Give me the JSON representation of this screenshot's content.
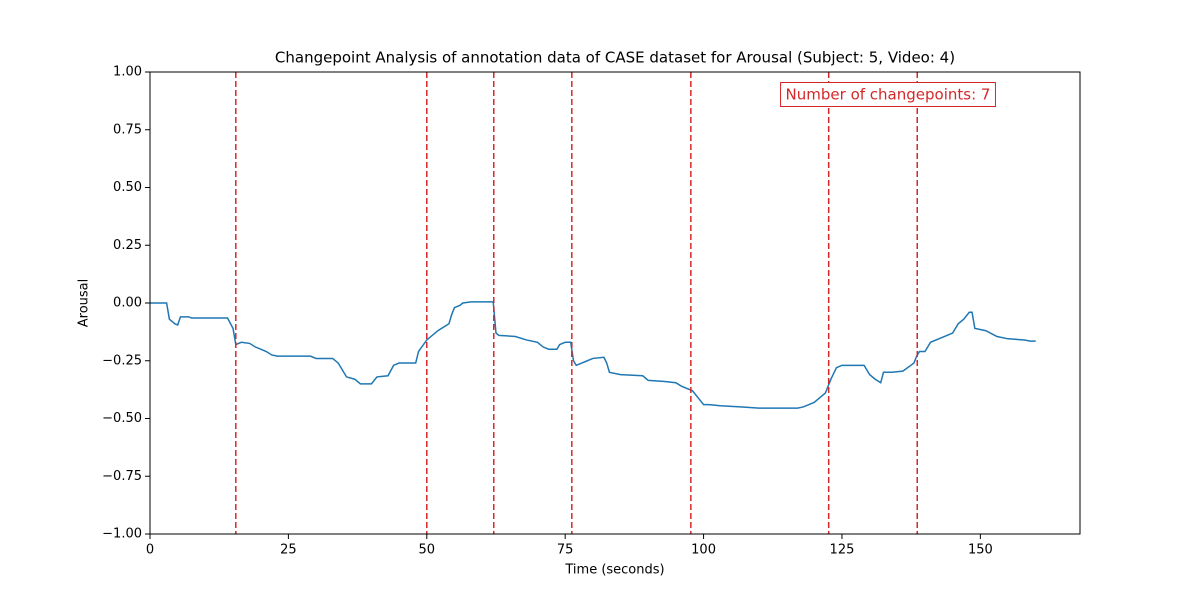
{
  "chart_data": {
    "type": "line",
    "title": "Changepoint Analysis of annotation data of CASE dataset for Arousal (Subject: 5, Video: 4)",
    "x_label": "Time (seconds)",
    "y_label": "Arousal",
    "annotation": "Number of changepoints: 7",
    "x": [
      0,
      3,
      3.5,
      4.5,
      5,
      5.5,
      7,
      7.5,
      14,
      15,
      15.5,
      16.5,
      18,
      19,
      20,
      21,
      22,
      23,
      29,
      30,
      33,
      34,
      35,
      35.5,
      37,
      38,
      40,
      41,
      43,
      44,
      45,
      48,
      48.5,
      50,
      52,
      54,
      54.5,
      55,
      56,
      56.5,
      58,
      62,
      62.5,
      63,
      66,
      68,
      70,
      71,
      72,
      73.5,
      74,
      75,
      76,
      76.5,
      77,
      78,
      79,
      80,
      82,
      82.5,
      83,
      85,
      89,
      90,
      93,
      95,
      96,
      98,
      99,
      100,
      101,
      103,
      107,
      110,
      117,
      118,
      119,
      120,
      121,
      122,
      123,
      124,
      125,
      129,
      130,
      131,
      132,
      132.5,
      134,
      136,
      138,
      138.5,
      139,
      140,
      141,
      143,
      145,
      146,
      147,
      148,
      148.5,
      149,
      151,
      153,
      155,
      158,
      159,
      160
    ],
    "series": [
      {
        "name": "Arousal",
        "color": "#1f77b4",
        "values": [
          0,
          0,
          -0.07,
          -0.09,
          -0.095,
          -0.06,
          -0.06,
          -0.065,
          -0.065,
          -0.11,
          -0.18,
          -0.17,
          -0.175,
          -0.19,
          -0.2,
          -0.21,
          -0.225,
          -0.23,
          -0.23,
          -0.24,
          -0.24,
          -0.26,
          -0.3,
          -0.32,
          -0.33,
          -0.35,
          -0.35,
          -0.32,
          -0.315,
          -0.27,
          -0.26,
          -0.26,
          -0.21,
          -0.16,
          -0.12,
          -0.09,
          -0.05,
          -0.02,
          -0.01,
          0,
          0.005,
          0.005,
          -0.13,
          -0.14,
          -0.145,
          -0.16,
          -0.17,
          -0.19,
          -0.2,
          -0.2,
          -0.18,
          -0.17,
          -0.17,
          -0.25,
          -0.27,
          -0.26,
          -0.25,
          -0.24,
          -0.235,
          -0.26,
          -0.3,
          -0.31,
          -0.315,
          -0.335,
          -0.34,
          -0.345,
          -0.36,
          -0.38,
          -0.41,
          -0.44,
          -0.44,
          -0.445,
          -0.45,
          -0.455,
          -0.455,
          -0.45,
          -0.44,
          -0.43,
          -0.41,
          -0.39,
          -0.33,
          -0.28,
          -0.27,
          -0.27,
          -0.31,
          -0.33,
          -0.345,
          -0.3,
          -0.3,
          -0.295,
          -0.26,
          -0.23,
          -0.21,
          -0.21,
          -0.17,
          -0.15,
          -0.13,
          -0.09,
          -0.07,
          -0.04,
          -0.04,
          -0.11,
          -0.12,
          -0.145,
          -0.155,
          -0.16,
          -0.165,
          -0.165
        ]
      }
    ],
    "changepoints": [
      15.5,
      50,
      62.1,
      76.2,
      97.7,
      122.6,
      138.6
    ],
    "changepoint_color": "#d62728",
    "xlim": [
      0,
      168
    ],
    "ylim": [
      -1,
      1
    ],
    "xticks": [
      0,
      25,
      50,
      75,
      100,
      125,
      150
    ],
    "yticks": [
      {
        "value": -1,
        "label": "−1.00"
      },
      {
        "value": -0.75,
        "label": "−0.75"
      },
      {
        "value": -0.5,
        "label": "−0.50"
      },
      {
        "value": -0.25,
        "label": "−0.25"
      },
      {
        "value": 0,
        "label": "0.00"
      },
      {
        "value": 0.25,
        "label": "0.25"
      },
      {
        "value": 0.5,
        "label": "0.50"
      },
      {
        "value": 0.75,
        "label": "0.75"
      },
      {
        "value": 1,
        "label": "1.00"
      }
    ]
  }
}
